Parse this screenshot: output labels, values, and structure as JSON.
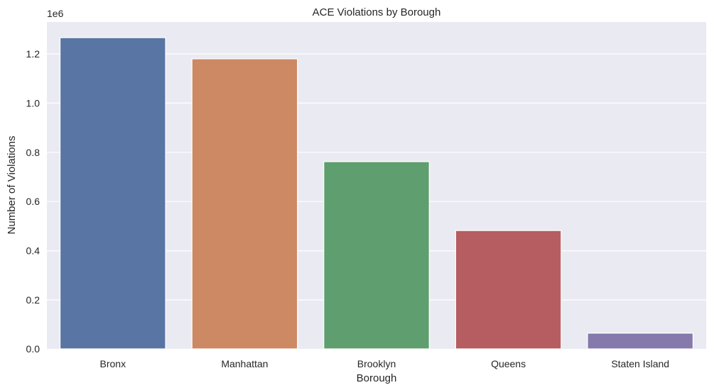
{
  "chart_data": {
    "type": "bar",
    "title": "ACE Violations by Borough",
    "xlabel": "Borough",
    "ylabel": "Number of Violations",
    "y_offset_label": "1e6",
    "categories": [
      "Bronx",
      "Manhattan",
      "Brooklyn",
      "Queens",
      "Staten Island"
    ],
    "values": [
      1266000,
      1180000,
      762000,
      482000,
      65000
    ],
    "colors": [
      "#5975a4",
      "#cc8963",
      "#5f9e6e",
      "#b55d60",
      "#857aab"
    ],
    "ylim": [
      0,
      1330000
    ],
    "yticks": [
      0,
      200000,
      400000,
      600000,
      800000,
      1000000,
      1200000
    ],
    "ytick_labels": [
      "0.0",
      "0.2",
      "0.4",
      "0.6",
      "0.8",
      "1.0",
      "1.2"
    ],
    "grid": true,
    "legend": null,
    "style": {
      "background": "#eaeaf2",
      "grid_color": "#ffffff"
    }
  }
}
